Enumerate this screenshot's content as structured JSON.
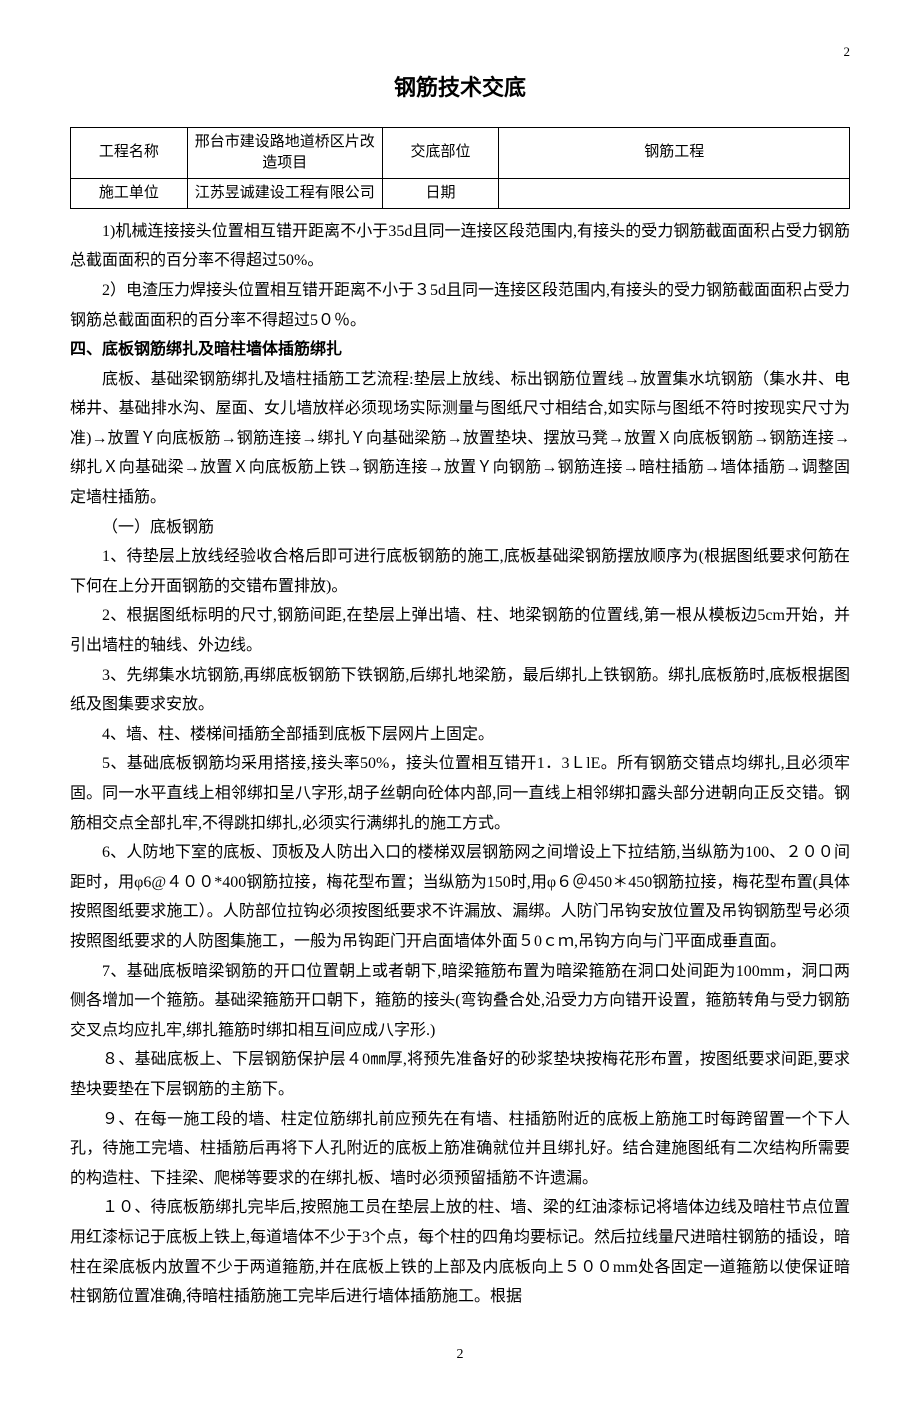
{
  "page_num_top": "2",
  "title": "钢筋技术交底",
  "table": {
    "rows": [
      [
        "工程名称",
        "邢台市建设路地道桥区片改造项目",
        "交底部位",
        "钢筋工程"
      ],
      [
        "施工单位",
        "江苏昱诚建设工程有限公司",
        "日期",
        ""
      ]
    ]
  },
  "paras": [
    {
      "cls": "",
      "text": "1)机械连接接头位置相互错开距离不小于35d且同一连接区段范围内,有接头的受力钢筋截面面积占受力钢筋总截面面积的百分率不得超过50%。"
    },
    {
      "cls": "",
      "text": "2）电渣压力焊接头位置相互错开距离不小于３5d且同一连接区段范围内,有接头的受力钢筋截面面积占受力钢筋总截面面积的百分率不得超过5０％。"
    },
    {
      "cls": "heading",
      "text": "四、底板钢筋绑扎及暗柱墙体插筋绑扎"
    },
    {
      "cls": "",
      "text": "底板、基础梁钢筋绑扎及墙柱插筋工艺流程:垫层上放线、标出钢筋位置线→放置集水坑钢筋（集水井、电梯井、基础排水沟、屋面、女儿墙放样必须现场实际测量与图纸尺寸相结合,如实际与图纸不符时按现实尺寸为准)→放置Ｙ向底板筋→钢筋连接→绑扎Ｙ向基础梁筋→放置垫块、摆放马凳→放置Ｘ向底板钢筋→钢筋连接→绑扎Ｘ向基础梁→放置Ｘ向底板筋上铁→钢筋连接→放置Ｙ向钢筋→钢筋连接→暗柱插筋→墙体插筋→调整固定墙柱插筋。"
    },
    {
      "cls": "sub",
      "text": "（一）底板钢筋"
    },
    {
      "cls": "sub",
      "text": "1、待垫层上放线经验收合格后即可进行底板钢筋的施工,底板基础梁钢筋摆放顺序为(根据图纸要求何筋在下何在上分开面钢筋的交错布置排放)。"
    },
    {
      "cls": "sub",
      "text": "2、根据图纸标明的尺寸,钢筋间距,在垫层上弹出墙、柱、地梁钢筋的位置线,第一根从模板边5cm开始，并引出墙柱的轴线、外边线。"
    },
    {
      "cls": "sub",
      "text": "3、先绑集水坑钢筋,再绑底板钢筋下铁钢筋,后绑扎地梁筋，最后绑扎上铁钢筋。绑扎底板筋时,底板根据图纸及图集要求安放。"
    },
    {
      "cls": "sub",
      "text": "4、墙、柱、楼梯间插筋全部插到底板下层网片上固定。"
    },
    {
      "cls": "sub",
      "text": "5、基础底板钢筋均采用搭接,接头率50%，接头位置相互错开1．3ＬlE。所有钢筋交错点均绑扎,且必须牢固。同一水平直线上相邻绑扣呈八字形,胡子丝朝向砼体内部,同一直线上相邻绑扣露头部分进朝向正反交错。钢筋相交点全部扎牢,不得跳扣绑扎,必须实行满绑扎的施工方式。"
    },
    {
      "cls": "sub",
      "text": "6、人防地下室的底板、顶板及人防出入口的楼梯双层钢筋网之间增设上下拉结筋,当纵筋为100、２００间距时，用φ6@４００*400钢筋拉接，梅花型布置；当纵筋为150时,用φ６＠450＊450钢筋拉接，梅花型布置(具体按照图纸要求施工）。人防部位拉钩必须按图纸要求不许漏放、漏绑。人防门吊钩安放位置及吊钩钢筋型号必须按照图纸要求的人防图集施工，一般为吊钩距门开启面墙体外面５0ｃｍ,吊钩方向与门平面成垂直面。"
    },
    {
      "cls": "sub",
      "text": "7、基础底板暗梁钢筋的开口位置朝上或者朝下,暗梁箍筋布置为暗梁箍筋在洞口处间距为100mm，洞口两侧各增加一个箍筋。基础梁箍筋开口朝下，箍筋的接头(弯钩叠合处,沿受力方向错开设置，箍筋转角与受力钢筋交叉点均应扎牢,绑扎箍筋时绑扣相互间应成八字形.)"
    },
    {
      "cls": "sub",
      "text": "８、基础底板上、下层钢筋保护层４0㎜厚,将预先准备好的砂浆垫块按梅花形布置，按图纸要求间距,要求垫块要垫在下层钢筋的主筋下。"
    },
    {
      "cls": "sub",
      "text": "９、在每一施工段的墙、柱定位筋绑扎前应预先在有墙、柱插筋附近的底板上筋施工时每跨留置一个下人孔，待施工完墙、柱插筋后再将下人孔附近的底板上筋准确就位并且绑扎好。结合建施图纸有二次结构所需要的构造柱、下挂梁、爬梯等要求的在绑扎板、墙时必须预留插筋不许遗漏。"
    },
    {
      "cls": "sub",
      "text": "１０、待底板筋绑扎完毕后,按照施工员在垫层上放的柱、墙、梁的红油漆标记将墙体边线及暗柱节点位置用红漆标记于底板上铁上,每道墙体不少于3个点，每个柱的四角均要标记。然后拉线量尺进暗柱钢筋的插设，暗柱在梁底板内放置不少于两道箍筋,并在底板上铁的上部及内底板向上５００mm处各固定一道箍筋以使保证暗柱钢筋位置准确,待暗柱插筋施工完毕后进行墙体插筋施工。根据"
    }
  ],
  "footer": "2"
}
